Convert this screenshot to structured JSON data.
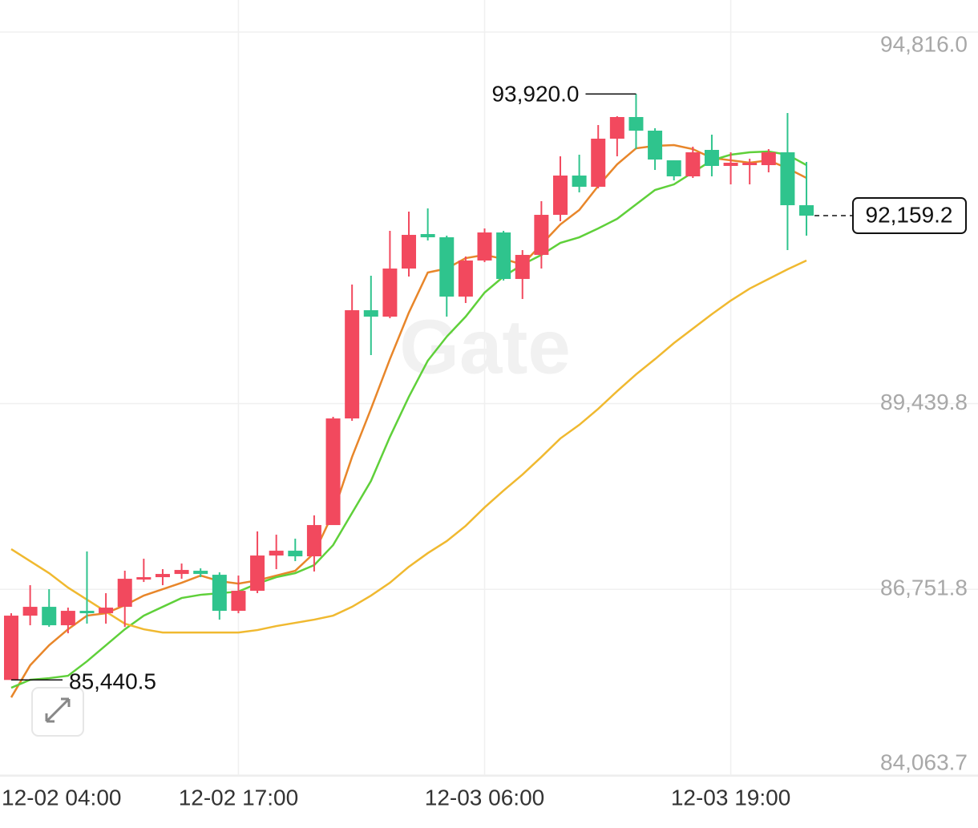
{
  "chart_data": {
    "type": "candlestick",
    "watermark": "Gate",
    "ylim": [
      84063.7,
      95280
    ],
    "yticks": [
      {
        "value": 94816.0,
        "label": "94,816.0"
      },
      {
        "value": 89439.8,
        "label": "89,439.8"
      },
      {
        "value": 86751.8,
        "label": "86,751.8"
      },
      {
        "value": 84063.7,
        "label": "84,063.7"
      }
    ],
    "xticks": [
      {
        "value": -1,
        "label": "12-02 04:00"
      },
      {
        "value": 12,
        "label": "12-02 17:00"
      },
      {
        "value": 25,
        "label": "12-03 06:00"
      },
      {
        "value": 38,
        "label": "12-03 19:00"
      }
    ],
    "grid": true,
    "up_color": "#f2495e",
    "down_color": "#2fc48d",
    "open": [
      85440.5,
      86371.2,
      86498.8,
      86232,
      86440.8,
      86406,
      86498.8,
      86893.2,
      86928,
      86974.4,
      87020.8,
      86962.8,
      86440.8,
      86730.8,
      87241.2,
      87310.8,
      87229.6,
      87682,
      89224.8,
      90790.8,
      90698,
      91394,
      91892.8,
      91846.4,
      90988,
      91510,
      91916,
      91243.2,
      91591.2,
      92171.2,
      92739.6,
      92577.2,
      93273.2,
      93586.4,
      93389.2,
      92960,
      92728,
      93110.8,
      92878.8,
      92890.4,
      92890.4,
      93076,
      92310.4
    ],
    "high": [
      86406,
      86812,
      86754,
      86487.2,
      87299.2,
      86696,
      87020.8,
      87194.8,
      87044,
      87125.2,
      87055.6,
      86997.6,
      86951.2,
      87589.2,
      87542.8,
      87484.8,
      87821.2,
      89248,
      91162,
      91289.6,
      91939.2,
      92217.6,
      92264,
      91869.6,
      91568,
      91974,
      91939.2,
      91660.8,
      92368.4,
      93018,
      93041.2,
      93470.4,
      93598,
      93920,
      93424,
      92960,
      93157.2,
      93331.2,
      93076,
      92983.2,
      93122.4,
      93644.4,
      92936.8
    ],
    "low": [
      85440.5,
      86232,
      86208.8,
      86116,
      86255.2,
      86255.2,
      86208.8,
      86858.4,
      86812,
      86904.8,
      86928,
      86313.2,
      86406,
      86696,
      87044,
      87160,
      87009.2,
      87682,
      89190,
      90141.2,
      90674.8,
      91278,
      91800,
      90698,
      90895.2,
      91486.8,
      91220,
      90953.2,
      91394,
      92078.4,
      92496,
      92554,
      93018,
      93122.4,
      92820.8,
      92670,
      92704.8,
      92728,
      92612,
      92612,
      92786,
      91660.8,
      91869.6
    ],
    "close": [
      86371.2,
      86498.8,
      86232,
      86440.8,
      86406,
      86487.2,
      86904.8,
      86928,
      86974.4,
      87032.4,
      86974.4,
      86440.8,
      86730.8,
      87241.2,
      87310.8,
      87229.6,
      87682,
      89224.8,
      90790.8,
      90698,
      91394,
      91881.2,
      91846.4,
      90988,
      91510,
      91916,
      91243.2,
      91591.2,
      92171.2,
      92739.6,
      92577.2,
      93273.2,
      93586.4,
      93389.2,
      92971.6,
      92728,
      93076,
      92878.8,
      92925.2,
      92925.2,
      93076,
      92310.4,
      92159.2
    ],
    "lines": [
      {
        "color": "#e8862a",
        "values": [
          85188,
          85652,
          85942,
          86174,
          86371.2,
          86406,
          86522,
          86661.2,
          86754,
          86846.8,
          86951.2,
          86870,
          86835.2,
          86881.6,
          86951.2,
          87020.8,
          87276,
          87856,
          88668,
          89364,
          90083.2,
          90756,
          91336,
          91394,
          91544.8,
          91591.2,
          91533.2,
          91452,
          91742,
          92032,
          92240.8,
          92588.8,
          92902,
          93134,
          93168.8,
          93180.4,
          93122.4,
          92994.8,
          92960,
          92925.2,
          92960,
          92844,
          92704.8
        ]
      },
      {
        "color": "#5fd03a",
        "values": [
          85327.2,
          85443.2,
          85466.4,
          85501.2,
          85710,
          85942,
          86174,
          86371.2,
          86498.8,
          86626.4,
          86672.8,
          86696,
          86719.2,
          86835.2,
          86928,
          86986,
          87102,
          87392,
          87856,
          88320,
          88958,
          89538,
          90060,
          90408,
          90698,
          91046,
          91278,
          91452,
          91591.2,
          91765.2,
          91846.4,
          91974,
          92113.2,
          92322,
          92530.8,
          92612,
          92786,
          92960,
          93041.2,
          93076,
          93087.6,
          93041.2,
          92890.4
        ]
      },
      {
        "color": "#f0b930",
        "values": [
          87334,
          87160,
          86986,
          86777.2,
          86603.2,
          86429.2,
          86255.2,
          86174,
          86127.6,
          86127.6,
          86127.6,
          86127.6,
          86127.6,
          86162.4,
          86220.4,
          86266.8,
          86313.2,
          86371.2,
          86498.8,
          86661.2,
          86846.8,
          87078.8,
          87276,
          87450,
          87670.4,
          87937.2,
          88180.8,
          88412.8,
          88668,
          88934.8,
          89132,
          89364,
          89619.2,
          89862.8,
          90083.2,
          90315.2,
          90524,
          90732.8,
          90930,
          91104,
          91243.2,
          91382.4,
          91510
        ]
      }
    ],
    "annotations": [
      {
        "index": 33,
        "value": 93920,
        "label": "93,920.0"
      },
      {
        "index": 0,
        "value": 85440.5,
        "label": "85,440.5"
      }
    ],
    "last_price": {
      "value": 92159.2,
      "label": "92,159.2"
    }
  }
}
